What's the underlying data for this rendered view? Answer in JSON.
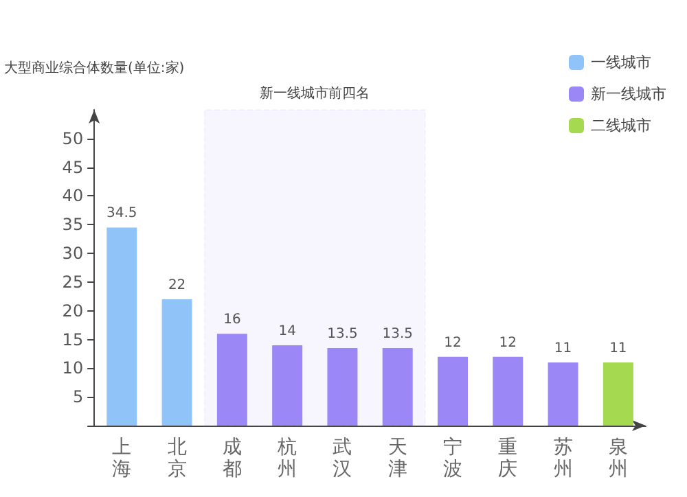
{
  "chart_data": {
    "type": "bar",
    "ylabel": "大型商业综合体数量(单位:家)",
    "categories": [
      "上海",
      "北京",
      "成都",
      "杭州",
      "武汉",
      "天津",
      "宁波",
      "重庆",
      "苏州",
      "泉州"
    ],
    "series": [
      {
        "name": "一线城市",
        "color": "#90c4f8",
        "values": [
          34.5,
          22,
          null,
          null,
          null,
          null,
          null,
          null,
          null,
          null
        ]
      },
      {
        "name": "新一线城市",
        "color": "#9b87f5",
        "values": [
          null,
          null,
          16,
          14,
          13.5,
          13.5,
          12,
          12,
          11,
          null
        ]
      },
      {
        "name": "二线城市",
        "color": "#a5d94f",
        "values": [
          null,
          null,
          null,
          null,
          null,
          null,
          null,
          null,
          null,
          11
        ]
      }
    ],
    "ylim": [
      0,
      55
    ],
    "yticks": [
      {
        "value": 0,
        "label": null
      },
      5,
      10,
      15,
      20,
      25,
      30,
      35,
      40,
      45,
      50
    ],
    "bands": [
      {
        "axis": "x",
        "from": "成都",
        "to": "天津",
        "label": "新一线城市前四名",
        "color": "#9b87f5"
      }
    ],
    "data_labels": true,
    "legend": "top right",
    "grid": false
  }
}
